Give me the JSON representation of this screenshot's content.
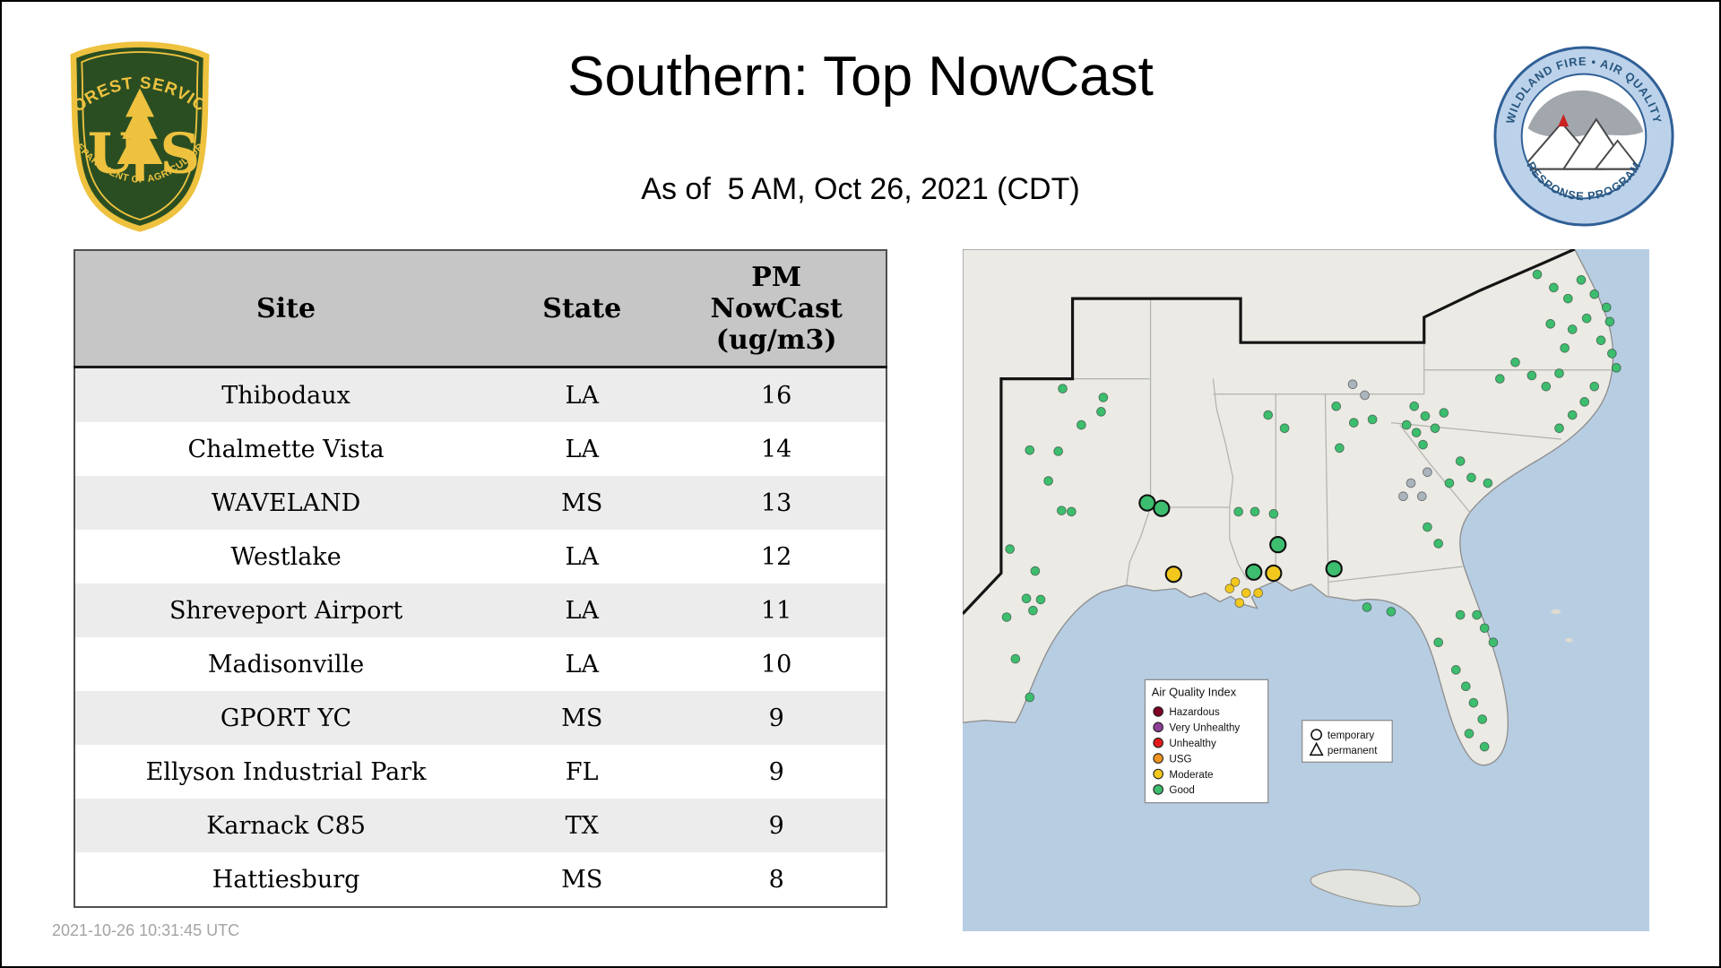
{
  "header": {
    "title": "Southern: Top NowCast",
    "subtitle": "As of  5 AM, Oct 26, 2021 (CDT)"
  },
  "logos": {
    "forest_service": {
      "top_text": "FOREST SERVICE",
      "letter_left": "U",
      "letter_right": "S",
      "bottom_text": "DEPARTMENT OF AGRICULTURE"
    },
    "wfaqrp": {
      "top_text": "WILDLAND FIRE • AIR QUALITY",
      "bottom_text": "RESPONSE PROGRAM"
    }
  },
  "table": {
    "columns": [
      "Site",
      "State",
      "PM NowCast (ug/m3)"
    ],
    "rows": [
      [
        "Thibodaux",
        "LA",
        16
      ],
      [
        "Chalmette Vista",
        "LA",
        14
      ],
      [
        "WAVELAND",
        "MS",
        13
      ],
      [
        "Westlake",
        "LA",
        12
      ],
      [
        "Shreveport Airport",
        "LA",
        11
      ],
      [
        "Madisonville",
        "LA",
        10
      ],
      [
        "GPORT YC",
        "MS",
        9
      ],
      [
        "Ellyson Industrial Park",
        "FL",
        9
      ],
      [
        "Karnack C85",
        "TX",
        9
      ],
      [
        "Hattiesburg",
        "MS",
        8
      ]
    ]
  },
  "footer": {
    "timestamp": "2021-10-26 10:31:45 UTC"
  },
  "map": {
    "colors": {
      "hazardous": "#7e0023",
      "very_unhealthy": "#8f3f97",
      "unhealthy": "#e31a1c",
      "usg": "#f19322",
      "moderate": "#f2c81e",
      "good": "#3dbd6e",
      "inactive": "#aab4bd"
    },
    "legend": {
      "title": "Air Quality Index",
      "items": [
        {
          "label": "Hazardous",
          "color_key": "hazardous"
        },
        {
          "label": "Very Unhealthy",
          "color_key": "very_unhealthy"
        },
        {
          "label": "Unhealthy",
          "color_key": "unhealthy"
        },
        {
          "label": "USG",
          "color_key": "usg"
        },
        {
          "label": "Moderate",
          "color_key": "moderate"
        },
        {
          "label": "Good",
          "color_key": "good"
        }
      ]
    },
    "marker_legend": {
      "items": [
        {
          "label": "temporary",
          "shape": "circle"
        },
        {
          "label": "permanent",
          "shape": "triangle"
        }
      ]
    },
    "points": [
      [
        91,
        127,
        "g",
        "p"
      ],
      [
        128,
        135,
        "g",
        "p"
      ],
      [
        126,
        148,
        "g",
        "p"
      ],
      [
        108,
        160,
        "g",
        "p"
      ],
      [
        61,
        183,
        "g",
        "p"
      ],
      [
        87,
        184,
        "g",
        "p"
      ],
      [
        78,
        211,
        "g",
        "p"
      ],
      [
        90,
        238,
        "g",
        "p"
      ],
      [
        99,
        239,
        "g",
        "p"
      ],
      [
        43,
        273,
        "g",
        "p"
      ],
      [
        66,
        293,
        "g",
        "p"
      ],
      [
        58,
        318,
        "g",
        "p"
      ],
      [
        71,
        319,
        "g",
        "p"
      ],
      [
        64,
        329,
        "g",
        "p"
      ],
      [
        40,
        335,
        "g",
        "p"
      ],
      [
        48,
        373,
        "g",
        "p"
      ],
      [
        61,
        408,
        "g",
        "p"
      ],
      [
        168,
        231,
        "g",
        "t"
      ],
      [
        181,
        236,
        "g",
        "t"
      ],
      [
        251,
        239,
        "g",
        "p"
      ],
      [
        266,
        239,
        "g",
        "p"
      ],
      [
        283,
        241,
        "g",
        "p"
      ],
      [
        265,
        294,
        "g",
        "t"
      ],
      [
        287,
        269,
        "g",
        "t"
      ],
      [
        338,
        291,
        "g",
        "t"
      ],
      [
        192,
        296,
        "m",
        "t"
      ],
      [
        283,
        295,
        "m",
        "t"
      ],
      [
        248,
        303,
        "m",
        "p"
      ],
      [
        258,
        313,
        "m",
        "p"
      ],
      [
        243,
        309,
        "m",
        "p"
      ],
      [
        252,
        322,
        "m",
        "p"
      ],
      [
        269,
        313,
        "m",
        "p"
      ],
      [
        278,
        151,
        "g",
        "p"
      ],
      [
        293,
        163,
        "g",
        "p"
      ],
      [
        343,
        181,
        "g",
        "p"
      ],
      [
        356,
        158,
        "g",
        "p"
      ],
      [
        373,
        155,
        "g",
        "p"
      ],
      [
        340,
        143,
        "g",
        "p"
      ],
      [
        404,
        160,
        "g",
        "p"
      ],
      [
        413,
        167,
        "g",
        "p"
      ],
      [
        421,
        152,
        "g",
        "p"
      ],
      [
        430,
        163,
        "g",
        "p"
      ],
      [
        438,
        149,
        "g",
        "p"
      ],
      [
        419,
        178,
        "g",
        "p"
      ],
      [
        411,
        143,
        "g",
        "p"
      ],
      [
        355,
        123,
        "i",
        "p"
      ],
      [
        366,
        133,
        "i",
        "p"
      ],
      [
        408,
        213,
        "i",
        "p"
      ],
      [
        418,
        225,
        "i",
        "p"
      ],
      [
        401,
        225,
        "i",
        "p"
      ],
      [
        423,
        203,
        "i",
        "p"
      ],
      [
        453,
        193,
        "g",
        "p"
      ],
      [
        463,
        208,
        "g",
        "p"
      ],
      [
        478,
        213,
        "g",
        "p"
      ],
      [
        443,
        213,
        "g",
        "p"
      ],
      [
        433,
        268,
        "g",
        "p"
      ],
      [
        423,
        253,
        "g",
        "p"
      ],
      [
        543,
        163,
        "g",
        "p"
      ],
      [
        555,
        151,
        "g",
        "p"
      ],
      [
        566,
        139,
        "g",
        "p"
      ],
      [
        575,
        125,
        "g",
        "p"
      ],
      [
        503,
        103,
        "g",
        "p"
      ],
      [
        518,
        115,
        "g",
        "p"
      ],
      [
        531,
        125,
        "g",
        "p"
      ],
      [
        543,
        113,
        "g",
        "p"
      ],
      [
        489,
        118,
        "g",
        "p"
      ],
      [
        523,
        23,
        "g",
        "p"
      ],
      [
        538,
        35,
        "g",
        "p"
      ],
      [
        551,
        45,
        "g",
        "p"
      ],
      [
        563,
        28,
        "g",
        "p"
      ],
      [
        575,
        41,
        "g",
        "p"
      ],
      [
        586,
        53,
        "g",
        "p"
      ],
      [
        589,
        66,
        "g",
        "p"
      ],
      [
        568,
        63,
        "g",
        "p"
      ],
      [
        555,
        73,
        "g",
        "p"
      ],
      [
        581,
        83,
        "g",
        "p"
      ],
      [
        591,
        95,
        "g",
        "p"
      ],
      [
        595,
        108,
        "g",
        "p"
      ],
      [
        535,
        68,
        "g",
        "p"
      ],
      [
        548,
        90,
        "g",
        "p"
      ],
      [
        453,
        333,
        "g",
        "p"
      ],
      [
        468,
        333,
        "g",
        "p"
      ],
      [
        475,
        345,
        "g",
        "p"
      ],
      [
        483,
        358,
        "g",
        "p"
      ],
      [
        449,
        383,
        "g",
        "p"
      ],
      [
        458,
        398,
        "g",
        "p"
      ],
      [
        465,
        413,
        "g",
        "p"
      ],
      [
        473,
        428,
        "g",
        "p"
      ],
      [
        461,
        441,
        "g",
        "p"
      ],
      [
        475,
        453,
        "g",
        "p"
      ],
      [
        433,
        358,
        "g",
        "p"
      ],
      [
        368,
        326,
        "g",
        "p"
      ],
      [
        390,
        330,
        "g",
        "p"
      ]
    ]
  },
  "chart_data": {
    "type": "table",
    "title": "Southern: Top NowCast",
    "subtitle": "As of 5 AM, Oct 26, 2021 (CDT)",
    "columns": [
      "Site",
      "State",
      "PM NowCast (ug/m3)"
    ],
    "rows": [
      [
        "Thibodaux",
        "LA",
        16
      ],
      [
        "Chalmette Vista",
        "LA",
        14
      ],
      [
        "WAVELAND",
        "MS",
        13
      ],
      [
        "Westlake",
        "LA",
        12
      ],
      [
        "Shreveport Airport",
        "LA",
        11
      ],
      [
        "Madisonville",
        "LA",
        10
      ],
      [
        "GPORT YC",
        "MS",
        9
      ],
      [
        "Ellyson Industrial Park",
        "FL",
        9
      ],
      [
        "Karnack C85",
        "TX",
        9
      ],
      [
        "Hattiesburg",
        "MS",
        8
      ]
    ]
  }
}
